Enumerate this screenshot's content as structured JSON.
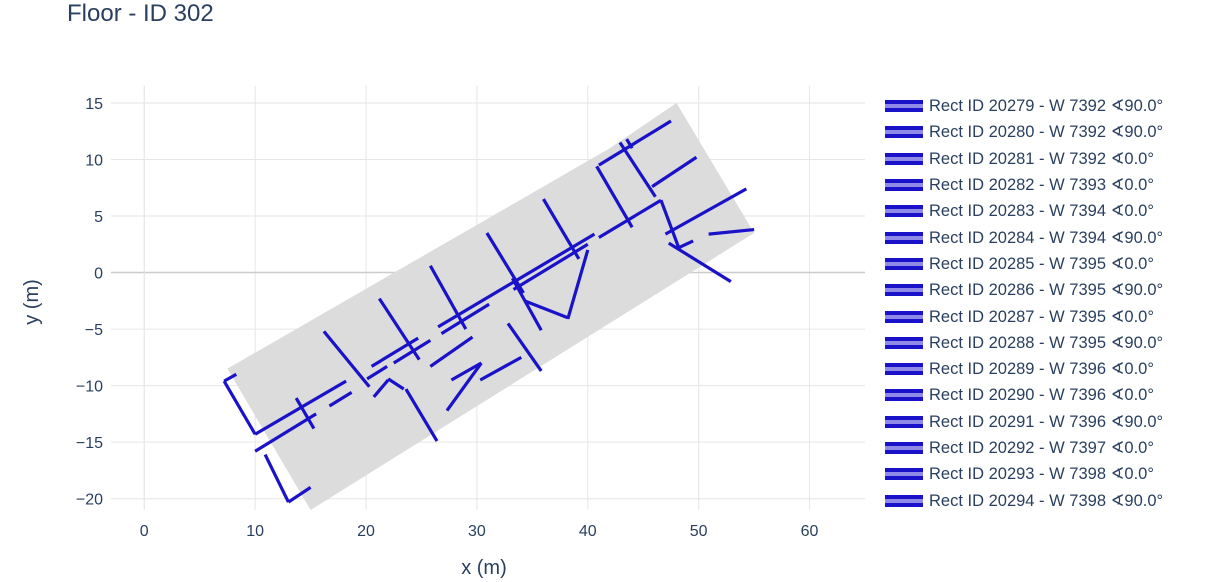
{
  "title": "Floor - ID 302",
  "chart_data": {
    "type": "line",
    "title": "Floor - ID 302",
    "xlabel": "x (m)",
    "ylabel": "y (m)",
    "xlim": [
      -3,
      65
    ],
    "ylim": [
      -21,
      16.5
    ],
    "x_ticks": [
      0,
      10,
      20,
      30,
      40,
      50,
      60
    ],
    "y_ticks": [
      15,
      10,
      5,
      0,
      -5,
      -10,
      -15,
      -20
    ],
    "x_tick_labels": [
      "0",
      "10",
      "20",
      "30",
      "40",
      "50",
      "60"
    ],
    "y_tick_labels": [
      "15",
      "10",
      "5",
      "0",
      "−5",
      "−10",
      "−15",
      "−20"
    ],
    "grid": true,
    "legend_position": "right",
    "colors": {
      "wall": "#1a12c8",
      "floor_fill": "#dcdcdc",
      "grid": "#e6e6e6",
      "zeroline": "#cccccc"
    },
    "floor_polygon": [
      [
        7.5,
        -8.5
      ],
      [
        42,
        11
      ],
      [
        48,
        15
      ],
      [
        55,
        3.5
      ],
      [
        15,
        -21
      ]
    ],
    "series": [
      {
        "name": "Rect ID 20279 - W 7392 ∢90.0°",
        "segments": [
          [
            [
              10,
              -14.3
            ],
            [
              18.2,
              -9.6
            ]
          ]
        ]
      },
      {
        "name": "Rect ID 20280 - W 7392 ∢90.0°",
        "segments": [
          [
            [
              20.5,
              -8.3
            ],
            [
              24.7,
              -5.8
            ]
          ],
          [
            [
              26.5,
              -4.8
            ],
            [
              40.6,
              3.4
            ]
          ]
        ]
      },
      {
        "name": "Rect ID 20281 - W 7392 ∢0.0°",
        "segments": [
          [
            [
              15.3,
              -13.8
            ],
            [
              13.7,
              -11.1
            ]
          ],
          [
            [
              20.3,
              -10.1
            ],
            [
              16.2,
              -5.2
            ]
          ],
          [
            [
              24.8,
              -7.7
            ],
            [
              21.2,
              -2.3
            ]
          ],
          [
            [
              29.0,
              -5.0
            ],
            [
              25.8,
              0.6
            ]
          ]
        ]
      },
      {
        "name": "Rect ID 20282 - W 7393 ∢0.0°",
        "segments": [
          [
            [
              34.2,
              -1.8
            ],
            [
              30.9,
              3.5
            ]
          ],
          [
            [
              39.2,
              1.2
            ],
            [
              36.0,
              6.5
            ]
          ],
          [
            [
              44.0,
              4.0
            ],
            [
              40.8,
              9.4
            ]
          ]
        ]
      },
      {
        "name": "Rect ID 20283 - W 7394 ∢0.0°",
        "segments": [
          [
            [
              41.0,
              9.5
            ],
            [
              47.5,
              13.4
            ]
          ]
        ]
      },
      {
        "name": "Rect ID 20284 - W 7394 ∢90.0°",
        "segments": [
          [
            [
              7.2,
              -9.6
            ],
            [
              8.3,
              -9.0
            ]
          ],
          [
            [
              7.2,
              -9.6
            ],
            [
              10,
              -14.3
            ]
          ]
        ]
      },
      {
        "name": "Rect ID 20285 - W 7395 ∢0.0°",
        "segments": [
          [
            [
              46.1,
              6.7
            ],
            [
              42.9,
              11.5
            ]
          ],
          [
            [
              43.5,
              11.8
            ],
            [
              44.0,
              11.0
            ]
          ]
        ]
      },
      {
        "name": "Rect ID 20286 - W 7395 ∢90.0°",
        "segments": [
          [
            [
              45.8,
              7.6
            ],
            [
              49.8,
              10.2
            ]
          ]
        ]
      },
      {
        "name": "Rect ID 20287 - W 7395 ∢0.0°",
        "segments": [
          [
            [
              10.0,
              -15.8
            ],
            [
              15.5,
              -12.5
            ]
          ],
          [
            [
              16.7,
              -11.8
            ],
            [
              18.7,
              -10.6
            ]
          ]
        ]
      },
      {
        "name": "Rect ID 20288 - W 7395 ∢90.0°",
        "segments": [
          [
            [
              20.1,
              -9.4
            ],
            [
              21.9,
              -8.3
            ]
          ],
          [
            [
              22.5,
              -8.0
            ],
            [
              25.8,
              -6.0
            ]
          ],
          [
            [
              26.8,
              -5.4
            ],
            [
              31.1,
              -2.8
            ]
          ]
        ]
      },
      {
        "name": "Rect ID 20289 - W 7396 ∢0.0°",
        "segments": [
          [
            [
              33.3,
              -1.5
            ],
            [
              40.0,
              2.5
            ]
          ],
          [
            [
              41.0,
              3.1
            ],
            [
              46.6,
              6.4
            ]
          ]
        ]
      },
      {
        "name": "Rect ID 20290 - W 7396 ∢0.0°",
        "segments": [
          [
            [
              46.6,
              6.4
            ],
            [
              48.2,
              2.2
            ]
          ],
          [
            [
              47.0,
              3.4
            ],
            [
              54.3,
              7.4
            ]
          ],
          [
            [
              47.3,
              2.6
            ],
            [
              52.9,
              -0.8
            ]
          ],
          [
            [
              48.2,
              2.2
            ],
            [
              49.5,
              2.8
            ]
          ]
        ]
      },
      {
        "name": "Rect ID 20291 - W 7396 ∢90.0°",
        "segments": [
          [
            [
              20.7,
              -11.0
            ],
            [
              22.0,
              -9.5
            ]
          ],
          [
            [
              22.0,
              -9.4
            ],
            [
              23.4,
              -10.3
            ]
          ],
          [
            [
              23.6,
              -10.3
            ],
            [
              26.4,
              -14.9
            ]
          ]
        ]
      },
      {
        "name": "Rect ID 20292 - W 7397 ∢0.0°",
        "segments": [
          [
            [
              25.8,
              -8.3
            ],
            [
              29.6,
              -5.7
            ]
          ],
          [
            [
              27.7,
              -9.5
            ],
            [
              30.4,
              -8.0
            ]
          ],
          [
            [
              30.3,
              -9.5
            ],
            [
              34.0,
              -7.5
            ]
          ],
          [
            [
              30.4,
              -8.0
            ],
            [
              27.3,
              -12.2
            ]
          ]
        ]
      },
      {
        "name": "Rect ID 20293 - W 7398 ∢0.0°",
        "segments": [
          [
            [
              35.8,
              -5.1
            ],
            [
              33.2,
              -0.5
            ]
          ],
          [
            [
              34.3,
              -2.5
            ],
            [
              38.2,
              -4.0
            ]
          ],
          [
            [
              40.0,
              2.0
            ],
            [
              38.2,
              -4.1
            ]
          ]
        ]
      },
      {
        "name": "Rect ID 20294 - W 7398 ∢90.0°",
        "segments": [
          [
            [
              10.9,
              -16.1
            ],
            [
              13.0,
              -20.3
            ]
          ],
          [
            [
              13.0,
              -20.3
            ],
            [
              15.0,
              -19.0
            ]
          ],
          [
            [
              32.8,
              -4.5
            ],
            [
              35.8,
              -8.7
            ]
          ],
          [
            [
              50.9,
              3.4
            ],
            [
              55.0,
              3.8
            ]
          ]
        ]
      }
    ]
  }
}
